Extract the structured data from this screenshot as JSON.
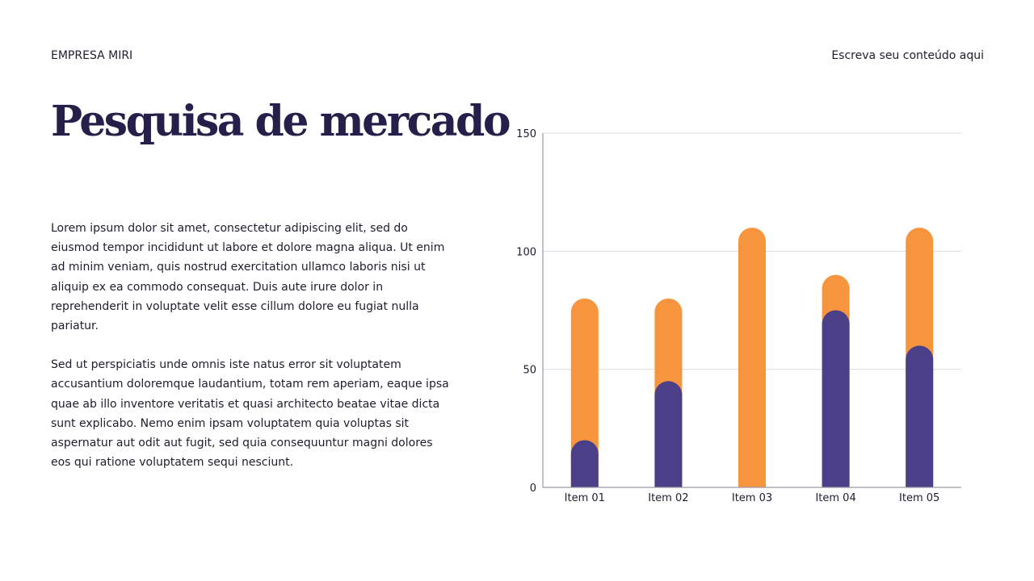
{
  "header": {
    "brand": "EMPRESA MIRI",
    "tagline": "Escreva seu conteúdo aqui"
  },
  "title": "Pesquisa de mercado",
  "paragraphs": [
    "Lorem ipsum dolor sit amet, consectetur adipiscing elit, sed do eiusmod tempor incididunt ut labore et dolore magna aliqua. Ut enim ad minim veniam, quis nostrud exercitation ullamco laboris nisi ut aliquip ex ea commodo consequat. Duis aute irure dolor in reprehenderit in voluptate velit esse cillum dolore eu fugiat nulla pariatur.",
    "Sed ut perspiciatis unde omnis iste natus error sit voluptatem accusantium doloremque laudantium, totam rem aperiam, eaque ipsa quae ab illo inventore veritatis et quasi architecto beatae vitae dicta sunt explicabo. Nemo enim ipsam voluptatem quia voluptas sit aspernatur aut odit aut fugit, sed quia consequuntur magni dolores eos qui ratione voluptatem sequi nesciunt."
  ],
  "chart_data": {
    "type": "bar",
    "layout": "overlapping",
    "categories": [
      "Item 01",
      "Item 02",
      "Item 03",
      "Item 04",
      "Item 05"
    ],
    "series": [
      {
        "values": [
          80,
          80,
          110,
          90,
          110
        ],
        "color": "#f7953f"
      },
      {
        "values": [
          20,
          45,
          0,
          75,
          60
        ],
        "color": "#4b3f87"
      }
    ],
    "ylim": [
      0,
      150
    ],
    "yticks": [
      0,
      50,
      100,
      150
    ],
    "grid": true
  }
}
